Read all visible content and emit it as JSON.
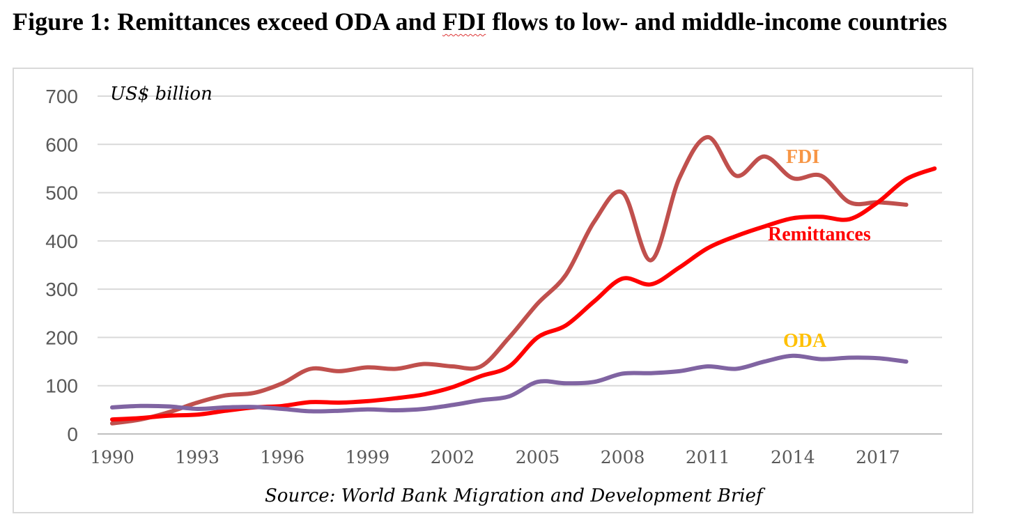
{
  "figure": {
    "title_prefix": "Figure 1: Remittances exceed ODA and ",
    "title_fdi": "FDI",
    "title_suffix": " flows to low- and middle-income countries"
  },
  "chart_data": {
    "type": "line",
    "unit_label": "US$ billion",
    "source": "Source: World Bank Migration and Development Brief",
    "ylim": [
      0,
      700
    ],
    "yticks": [
      0,
      100,
      200,
      300,
      400,
      500,
      600,
      700
    ],
    "xticks": [
      1990,
      1993,
      1996,
      1999,
      2002,
      2005,
      2008,
      2011,
      2014,
      2017
    ],
    "grid": "horizontal",
    "series": [
      {
        "name": "FDI",
        "color": "#c0504d",
        "label_color": "#f79646",
        "x": [
          1990,
          1991,
          1992,
          1993,
          1994,
          1995,
          1996,
          1997,
          1998,
          1999,
          2000,
          2001,
          2002,
          2003,
          2004,
          2005,
          2006,
          2007,
          2008,
          2009,
          2010,
          2011,
          2012,
          2013,
          2014,
          2015,
          2016,
          2017,
          2018
        ],
        "values": [
          22,
          30,
          45,
          65,
          80,
          85,
          105,
          135,
          130,
          138,
          135,
          145,
          140,
          140,
          200,
          270,
          330,
          440,
          500,
          360,
          530,
          615,
          535,
          575,
          530,
          535,
          480,
          480,
          475
        ]
      },
      {
        "name": "Remittances",
        "color": "#ff0000",
        "label_color": "#ff0000",
        "x": [
          1990,
          1991,
          1992,
          1993,
          1994,
          1995,
          1996,
          1997,
          1998,
          1999,
          2000,
          2001,
          2002,
          2003,
          2004,
          2005,
          2006,
          2007,
          2008,
          2009,
          2010,
          2011,
          2012,
          2013,
          2014,
          2015,
          2016,
          2017,
          2018,
          2019
        ],
        "values": [
          30,
          33,
          38,
          40,
          48,
          55,
          58,
          66,
          65,
          68,
          74,
          82,
          97,
          120,
          140,
          200,
          225,
          275,
          322,
          310,
          345,
          385,
          410,
          430,
          447,
          450,
          445,
          480,
          528,
          550
        ]
      },
      {
        "name": "ODA",
        "color": "#8064a2",
        "label_color": "#ffc000",
        "x": [
          1990,
          1991,
          1992,
          1993,
          1994,
          1995,
          1996,
          1997,
          1998,
          1999,
          2000,
          2001,
          2002,
          2003,
          2004,
          2005,
          2006,
          2007,
          2008,
          2009,
          2010,
          2011,
          2012,
          2013,
          2014,
          2015,
          2016,
          2017,
          2018
        ],
        "values": [
          55,
          58,
          57,
          52,
          55,
          56,
          52,
          47,
          48,
          51,
          49,
          52,
          60,
          70,
          78,
          108,
          105,
          108,
          125,
          126,
          130,
          140,
          135,
          150,
          162,
          155,
          158,
          157,
          150
        ]
      }
    ]
  }
}
